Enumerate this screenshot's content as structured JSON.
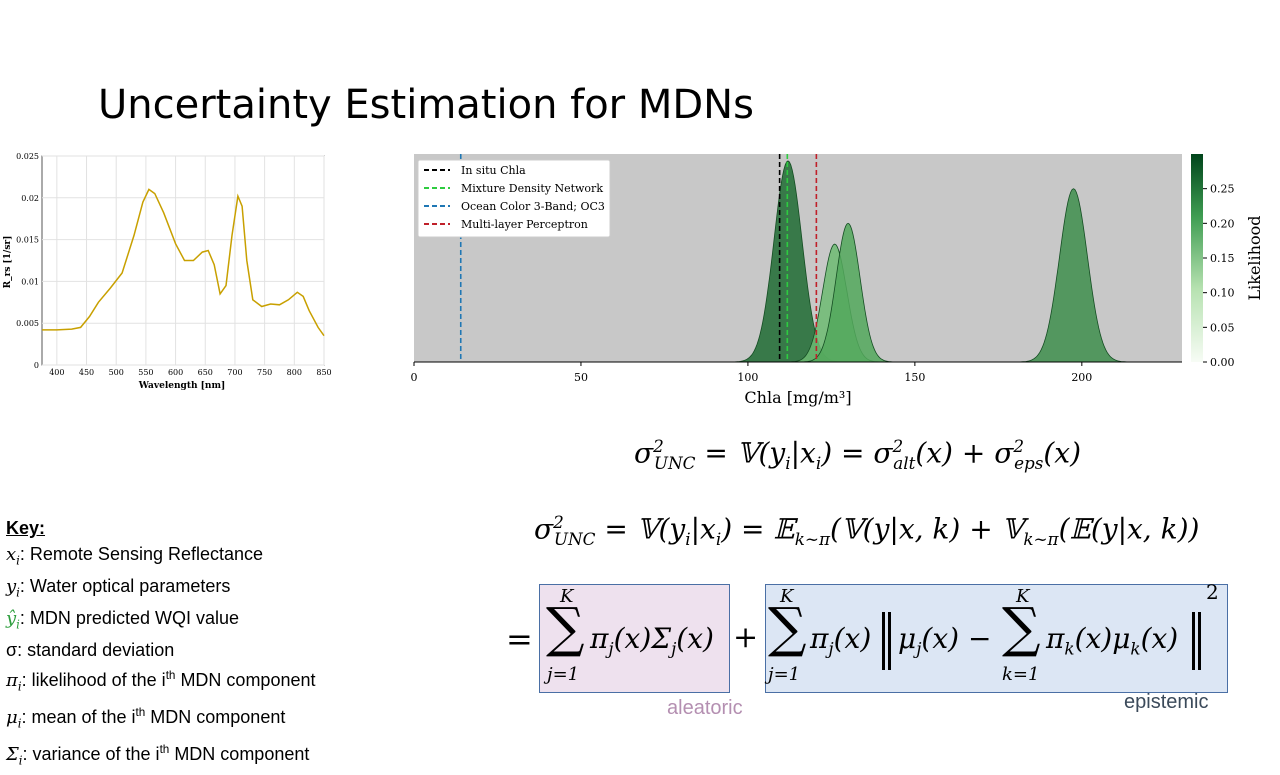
{
  "slide": {
    "title": "Uncertainty Estimation for MDNs"
  },
  "spectrum_chart": {
    "ylabel": "R_rs [1/sr]",
    "xlabel": "Wavelength [nm]",
    "line_color": "#c8a000"
  },
  "density_chart": {
    "xlabel": "Chla [mg/m³]",
    "colorbar_label": "Likelihood",
    "legend": [
      {
        "label": "In situ Chla",
        "color": "#000000"
      },
      {
        "label": "Mixture Density Network",
        "color": "#2ecc40"
      },
      {
        "label": "Ocean Color 3-Band; OC3",
        "color": "#1f77b4"
      },
      {
        "label": "Multi-layer Perceptron",
        "color": "#c0202a"
      }
    ]
  },
  "chart_data": [
    {
      "type": "line",
      "xlabel": "Wavelength [nm]",
      "ylabel": "R_rs [1/sr]",
      "xlim": [
        375,
        850
      ],
      "ylim": [
        0,
        0.025
      ],
      "x_ticks": [
        400,
        450,
        500,
        550,
        600,
        650,
        700,
        750,
        800,
        850
      ],
      "y_ticks": [
        "0",
        "0.005",
        "0.01",
        "0.015",
        "0.02",
        "0.025"
      ],
      "series": [
        {
          "x": [
            375,
            400,
            425,
            440,
            455,
            470,
            490,
            510,
            530,
            545,
            555,
            565,
            580,
            600,
            615,
            630,
            645,
            655,
            665,
            675,
            685,
            695,
            705,
            712,
            720,
            730,
            745,
            760,
            775,
            790,
            805,
            815,
            825,
            840,
            850
          ],
          "values": [
            0.0042,
            0.0042,
            0.0043,
            0.0045,
            0.0058,
            0.0075,
            0.0092,
            0.011,
            0.0155,
            0.0195,
            0.021,
            0.0205,
            0.0182,
            0.0145,
            0.0125,
            0.0125,
            0.0135,
            0.0137,
            0.012,
            0.0085,
            0.0095,
            0.0155,
            0.0202,
            0.019,
            0.0125,
            0.0078,
            0.007,
            0.0073,
            0.0072,
            0.0078,
            0.0087,
            0.0082,
            0.0065,
            0.0045,
            0.0035
          ]
        }
      ]
    },
    {
      "type": "area",
      "xlabel": "Chla [mg/m³]",
      "xlim": [
        0,
        230
      ],
      "x_ticks": [
        0,
        50,
        100,
        150,
        200
      ],
      "colorbar": {
        "label": "Likelihood",
        "range": [
          0,
          0.3
        ],
        "ticks": [
          "0.00",
          "0.05",
          "0.10",
          "0.15",
          "0.20",
          "0.25"
        ]
      },
      "series": [
        {
          "peak_x": 112,
          "sigma": 4.2,
          "likelihood": 0.29,
          "fill": "#1f6b33"
        },
        {
          "peak_x": 126,
          "sigma": 3.6,
          "likelihood": 0.17,
          "fill": "#6dbb72"
        },
        {
          "peak_x": 130,
          "sigma": 3.6,
          "likelihood": 0.2,
          "fill": "#52a85c"
        },
        {
          "peak_x": 197.5,
          "sigma": 4.2,
          "likelihood": 0.25,
          "fill": "#3e8e4c"
        }
      ],
      "vlines": [
        {
          "name": "In situ Chla",
          "x": 109.5,
          "color": "#000000"
        },
        {
          "name": "Mixture Density Network",
          "x": 111.8,
          "color": "#2ecc40"
        },
        {
          "name": "Ocean Color 3-Band; OC3",
          "x": 14,
          "color": "#1f77b4"
        },
        {
          "name": "Multi-layer Perceptron",
          "x": 120.5,
          "color": "#c0202a"
        }
      ]
    }
  ],
  "equations": {
    "eq1_lhs": "σ",
    "eq1_sub_unc": "UNC",
    "eq1_sup2": "2",
    "eq1_mid": "= 𝕍(y",
    "eq1_i": "i",
    "eq1_given": "|x",
    "eq1_close": ") =",
    "eq1_alt": "alt",
    "eq1_eps": "eps",
    "eq1_arg": "(x)",
    "eq1_plus": "+",
    "eq2_rhs": "= 𝔼",
    "eq2_ksub": "k∼π",
    "eq2_inner1": "(𝕍(y|x, k) + 𝕍",
    "eq2_inner2": "(𝔼(y|x, k))",
    "eq3_equals": "=",
    "sum_upper": "K",
    "sum_lower_j": "j=1",
    "sum_lower_k": "k=1",
    "sigma_glyph": "∑",
    "term_alea": "π",
    "term_alea_sub": "j",
    "term_alea_rest": "(x)Σ",
    "term_alea_end": "(x)",
    "term_plus": "+",
    "term_epi_pi": "π",
    "term_epi_j": "j",
    "term_epi_x": "(x)",
    "term_epi_mu": "μ",
    "term_epi_minus": "(x) −",
    "term_epi_pk": "π",
    "term_epi_k": "k",
    "term_epi_xmu": "(x)μ",
    "term_epi_end": "(x)",
    "norm_sup": "2"
  },
  "labels": {
    "aleatoric": "aleatoric",
    "epistemic": "epistemic"
  },
  "key": {
    "title": "Key:",
    "items": [
      {
        "symbol": "x",
        "sub": "i",
        "text": ": Remote Sensing Reflectance"
      },
      {
        "symbol": "y",
        "sub": "i",
        "text": ": Water optical parameters"
      },
      {
        "symbol": "ŷ",
        "sub": "i",
        "text": ": MDN predicted WQI value"
      },
      {
        "symbol": "σ",
        "sub": "",
        "text": ": standard deviation"
      },
      {
        "symbol": "π",
        "sub": "i",
        "text": ": likelihood of the i",
        "sup": "th",
        "tail": " MDN component"
      },
      {
        "symbol": "μ",
        "sub": "i",
        "text": ": mean of the i",
        "sup": "th",
        "tail": " MDN component"
      },
      {
        "symbol": "Σ",
        "sub": "i",
        "text": ": variance of the i",
        "sup": "th",
        "tail": " MDN component"
      }
    ]
  }
}
